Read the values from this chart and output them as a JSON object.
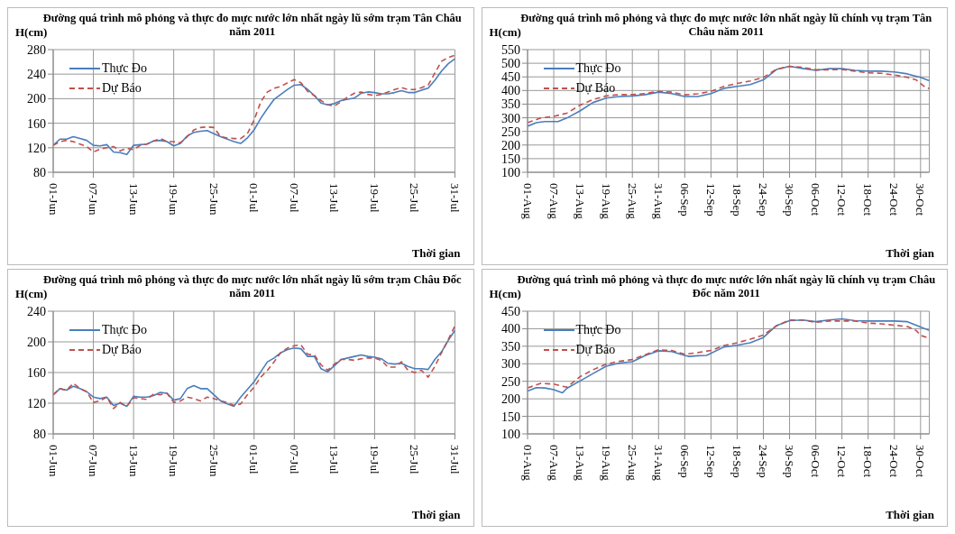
{
  "chart_data": [
    {
      "type": "line",
      "title": "Đường quá trình mô phỏng và thực đo mực nước lớn nhất ngày lũ sớm trạm Tân Châu năm 2011",
      "ylabel": "H(cm)",
      "xlabel": "Thời gian",
      "legend": "top left",
      "grid": true,
      "marker": "none",
      "x": [
        "2011-06-01",
        "2011-06-02",
        "2011-06-03",
        "2011-06-04",
        "2011-06-05",
        "2011-06-06",
        "2011-06-07",
        "2011-06-08",
        "2011-06-09",
        "2011-06-10",
        "2011-06-11",
        "2011-06-12",
        "2011-06-13",
        "2011-06-14",
        "2011-06-15",
        "2011-06-16",
        "2011-06-17",
        "2011-06-18",
        "2011-06-19",
        "2011-06-20",
        "2011-06-21",
        "2011-06-22",
        "2011-06-23",
        "2011-06-24",
        "2011-06-25",
        "2011-06-26",
        "2011-06-27",
        "2011-06-28",
        "2011-06-29",
        "2011-06-30",
        "2011-07-01",
        "2011-07-02",
        "2011-07-03",
        "2011-07-04",
        "2011-07-05",
        "2011-07-06",
        "2011-07-07",
        "2011-07-08",
        "2011-07-09",
        "2011-07-10",
        "2011-07-11",
        "2011-07-12",
        "2011-07-13",
        "2011-07-14",
        "2011-07-15",
        "2011-07-16",
        "2011-07-17",
        "2011-07-18",
        "2011-07-19",
        "2011-07-20",
        "2011-07-21",
        "2011-07-22",
        "2011-07-23",
        "2011-07-24",
        "2011-07-25",
        "2011-07-26",
        "2011-07-27",
        "2011-07-28",
        "2011-07-29",
        "2011-07-30",
        "2011-07-31"
      ],
      "xlim": [
        "2011-06-01",
        "2011-07-31"
      ],
      "xticks": [
        {
          "value": "2011-06-01",
          "label": "01-Jun"
        },
        {
          "value": "2011-06-07",
          "label": "07-Jun"
        },
        {
          "value": "2011-06-13",
          "label": "13-Jun"
        },
        {
          "value": "2011-06-19",
          "label": "19-Jun"
        },
        {
          "value": "2011-06-25",
          "label": "25-Jun"
        },
        {
          "value": "2011-07-01",
          "label": "01-Jul"
        },
        {
          "value": "2011-07-07",
          "label": "07-Jul"
        },
        {
          "value": "2011-07-13",
          "label": "13-Jul"
        },
        {
          "value": "2011-07-19",
          "label": "19-Jul"
        },
        {
          "value": "2011-07-25",
          "label": "25-Jul"
        },
        {
          "value": "2011-07-31",
          "label": "31-Jul"
        }
      ],
      "ylim": [
        80,
        280
      ],
      "yticks": [
        80,
        120,
        160,
        200,
        240,
        280
      ],
      "series": [
        {
          "name": "Thực Đo",
          "color": "#4a7ebb",
          "line_style": "solid",
          "values": [
            124,
            134,
            134,
            138,
            135,
            132,
            124,
            123,
            125,
            113,
            112,
            109,
            124,
            125,
            126,
            131,
            132,
            130,
            123,
            127,
            139,
            145,
            147,
            148,
            143,
            138,
            134,
            130,
            127,
            136,
            149,
            168,
            184,
            199,
            207,
            215,
            222,
            223,
            215,
            205,
            193,
            190,
            192,
            197,
            199,
            201,
            209,
            211,
            210,
            208,
            208,
            210,
            213,
            210,
            210,
            214,
            217,
            230,
            245,
            257,
            265
          ]
        },
        {
          "name": "Dự Báo",
          "color": "#c0504d",
          "line_style": "dashed",
          "values": [
            124,
            130,
            132,
            130,
            126,
            122,
            113,
            118,
            120,
            122,
            115,
            119,
            117,
            124,
            126,
            131,
            135,
            130,
            130,
            128,
            138,
            149,
            153,
            154,
            153,
            138,
            136,
            135,
            135,
            143,
            165,
            195,
            211,
            217,
            220,
            226,
            231,
            226,
            212,
            205,
            197,
            190,
            188,
            195,
            203,
            209,
            211,
            207,
            205,
            207,
            211,
            215,
            218,
            215,
            215,
            218,
            222,
            242,
            261,
            267,
            271
          ]
        }
      ]
    },
    {
      "type": "line",
      "title": "Đường quá trình mô phỏng và thực đo mực nước lớn nhất ngày lũ chính vụ trạm Tân Châu năm 2011",
      "ylabel": "H(cm)",
      "xlabel": "Thời gian",
      "legend": "top left",
      "grid": true,
      "marker": "none",
      "xlim": [
        "2011-08-01",
        "2011-11-01"
      ],
      "xticks": [
        {
          "value": "2011-08-01",
          "label": "01-Aug"
        },
        {
          "value": "2011-08-07",
          "label": "07-Aug"
        },
        {
          "value": "2011-08-13",
          "label": "13-Aug"
        },
        {
          "value": "2011-08-19",
          "label": "19-Aug"
        },
        {
          "value": "2011-08-25",
          "label": "25-Aug"
        },
        {
          "value": "2011-08-31",
          "label": "31-Aug"
        },
        {
          "value": "2011-09-06",
          "label": "06-Sep"
        },
        {
          "value": "2011-09-12",
          "label": "12-Sep"
        },
        {
          "value": "2011-09-18",
          "label": "18-Sep"
        },
        {
          "value": "2011-09-24",
          "label": "24-Sep"
        },
        {
          "value": "2011-09-30",
          "label": "30-Sep"
        },
        {
          "value": "2011-10-06",
          "label": "06-Oct"
        },
        {
          "value": "2011-10-12",
          "label": "12-Oct"
        },
        {
          "value": "2011-10-18",
          "label": "18-Oct"
        },
        {
          "value": "2011-10-24",
          "label": "24-Oct"
        },
        {
          "value": "2011-10-30",
          "label": "30-Oct"
        }
      ],
      "ylim": [
        100,
        550
      ],
      "yticks": [
        100,
        150,
        200,
        250,
        300,
        350,
        400,
        450,
        500,
        550
      ],
      "series": [
        {
          "name": "Thực Đo",
          "color": "#4a7ebb",
          "line_style": "solid",
          "x": [
            "2011-08-01",
            "2011-08-03",
            "2011-08-05",
            "2011-08-08",
            "2011-08-10",
            "2011-08-13",
            "2011-08-16",
            "2011-08-19",
            "2011-08-22",
            "2011-08-25",
            "2011-08-28",
            "2011-08-31",
            "2011-09-03",
            "2011-09-06",
            "2011-09-09",
            "2011-09-12",
            "2011-09-15",
            "2011-09-18",
            "2011-09-21",
            "2011-09-24",
            "2011-09-27",
            "2011-09-30",
            "2011-10-03",
            "2011-10-06",
            "2011-10-09",
            "2011-10-12",
            "2011-10-15",
            "2011-10-18",
            "2011-10-21",
            "2011-10-24",
            "2011-10-27",
            "2011-10-30",
            "2011-11-01"
          ],
          "values": [
            269,
            282,
            286,
            286,
            299,
            325,
            356,
            372,
            378,
            380,
            385,
            394,
            389,
            378,
            378,
            389,
            408,
            415,
            422,
            439,
            477,
            489,
            481,
            474,
            480,
            480,
            474,
            471,
            471,
            468,
            461,
            448,
            436
          ]
        },
        {
          "name": "Dự Báo",
          "color": "#c0504d",
          "line_style": "dashed",
          "x": [
            "2011-08-01",
            "2011-08-04",
            "2011-08-07",
            "2011-08-10",
            "2011-08-13",
            "2011-08-16",
            "2011-08-19",
            "2011-08-22",
            "2011-08-25",
            "2011-08-28",
            "2011-08-31",
            "2011-09-03",
            "2011-09-06",
            "2011-09-09",
            "2011-09-12",
            "2011-09-15",
            "2011-09-18",
            "2011-09-21",
            "2011-09-24",
            "2011-09-27",
            "2011-09-30",
            "2011-10-03",
            "2011-10-06",
            "2011-10-09",
            "2011-10-12",
            "2011-10-15",
            "2011-10-18",
            "2011-10-21",
            "2011-10-24",
            "2011-10-27",
            "2011-10-29",
            "2011-10-31",
            "2011-11-01"
          ],
          "values": [
            282,
            299,
            305,
            317,
            346,
            367,
            380,
            385,
            385,
            389,
            397,
            394,
            384,
            388,
            397,
            415,
            426,
            435,
            448,
            478,
            489,
            485,
            476,
            476,
            477,
            471,
            465,
            463,
            457,
            448,
            439,
            413,
            407
          ]
        }
      ]
    },
    {
      "type": "line",
      "title": "Đường quá trình mô phỏng và thực đo mực nước lớn nhất ngày lũ sớm trạm Châu Đốc năm 2011",
      "ylabel": "H(cm)",
      "xlabel": "Thời gian",
      "legend": "top left",
      "grid": true,
      "marker": "none",
      "x": [
        "2011-06-01",
        "2011-06-02",
        "2011-06-03",
        "2011-06-04",
        "2011-06-05",
        "2011-06-06",
        "2011-06-07",
        "2011-06-08",
        "2011-06-09",
        "2011-06-10",
        "2011-06-11",
        "2011-06-12",
        "2011-06-13",
        "2011-06-14",
        "2011-06-15",
        "2011-06-16",
        "2011-06-17",
        "2011-06-18",
        "2011-06-19",
        "2011-06-20",
        "2011-06-21",
        "2011-06-22",
        "2011-06-23",
        "2011-06-24",
        "2011-06-25",
        "2011-06-26",
        "2011-06-27",
        "2011-06-28",
        "2011-06-29",
        "2011-06-30",
        "2011-07-01",
        "2011-07-02",
        "2011-07-03",
        "2011-07-04",
        "2011-07-05",
        "2011-07-06",
        "2011-07-07",
        "2011-07-08",
        "2011-07-09",
        "2011-07-10",
        "2011-07-11",
        "2011-07-12",
        "2011-07-13",
        "2011-07-14",
        "2011-07-15",
        "2011-07-16",
        "2011-07-17",
        "2011-07-18",
        "2011-07-19",
        "2011-07-20",
        "2011-07-21",
        "2011-07-22",
        "2011-07-23",
        "2011-07-24",
        "2011-07-25",
        "2011-07-26",
        "2011-07-27",
        "2011-07-28",
        "2011-07-29",
        "2011-07-30",
        "2011-07-31"
      ],
      "xlim": [
        "2011-06-01",
        "2011-07-31"
      ],
      "xticks": [
        {
          "value": "2011-06-01",
          "label": "01-Jun"
        },
        {
          "value": "2011-06-07",
          "label": "07-Jun"
        },
        {
          "value": "2011-06-13",
          "label": "13-Jun"
        },
        {
          "value": "2011-06-19",
          "label": "19-Jun"
        },
        {
          "value": "2011-06-25",
          "label": "25-Jun"
        },
        {
          "value": "2011-07-01",
          "label": "01-Jul"
        },
        {
          "value": "2011-07-07",
          "label": "07-Jul"
        },
        {
          "value": "2011-07-13",
          "label": "13-Jul"
        },
        {
          "value": "2011-07-19",
          "label": "19-Jul"
        },
        {
          "value": "2011-07-25",
          "label": "25-Jul"
        },
        {
          "value": "2011-07-31",
          "label": "31-Jul"
        }
      ],
      "ylim": [
        80,
        240
      ],
      "yticks": [
        80,
        120,
        160,
        200,
        240
      ],
      "series": [
        {
          "name": "Thực Đo",
          "color": "#4a7ebb",
          "line_style": "solid",
          "values": [
            131,
            139,
            137,
            142,
            139,
            135,
            128,
            126,
            128,
            117,
            120,
            116,
            129,
            128,
            128,
            130,
            134,
            133,
            124,
            126,
            139,
            143,
            139,
            139,
            131,
            123,
            119,
            116,
            128,
            138,
            148,
            161,
            174,
            179,
            186,
            190,
            192,
            191,
            181,
            181,
            165,
            161,
            169,
            177,
            179,
            181,
            183,
            181,
            180,
            178,
            172,
            171,
            172,
            168,
            165,
            165,
            164,
            177,
            187,
            202,
            215
          ]
        },
        {
          "name": "Dự Báo",
          "color": "#c0504d",
          "line_style": "dashed",
          "values": [
            131,
            139,
            137,
            146,
            139,
            135,
            121,
            123,
            128,
            113,
            121,
            116,
            127,
            126,
            125,
            132,
            131,
            133,
            121,
            123,
            128,
            126,
            123,
            128,
            126,
            123,
            121,
            117,
            119,
            131,
            141,
            154,
            163,
            174,
            186,
            192,
            195,
            196,
            184,
            183,
            170,
            163,
            171,
            177,
            177,
            176,
            178,
            179,
            179,
            176,
            167,
            167,
            174,
            163,
            160,
            163,
            154,
            168,
            186,
            203,
            221
          ]
        }
      ]
    },
    {
      "type": "line",
      "title": "Đường quá trình mô phỏng và thực đo mực nước lớn nhất ngày lũ chính vụ trạm Châu Đốc năm 2011",
      "ylabel": "H(cm)",
      "xlabel": "Thời gian",
      "legend": "top left",
      "grid": true,
      "marker": "none",
      "xlim": [
        "2011-08-01",
        "2011-11-01"
      ],
      "xticks": [
        {
          "value": "2011-08-01",
          "label": "01-Aug"
        },
        {
          "value": "2011-08-07",
          "label": "07-Aug"
        },
        {
          "value": "2011-08-13",
          "label": "13-Aug"
        },
        {
          "value": "2011-08-19",
          "label": "19-Aug"
        },
        {
          "value": "2011-08-25",
          "label": "25-Aug"
        },
        {
          "value": "2011-08-31",
          "label": "31-Aug"
        },
        {
          "value": "2011-09-06",
          "label": "06-Sep"
        },
        {
          "value": "2011-09-12",
          "label": "12-Sep"
        },
        {
          "value": "2011-09-18",
          "label": "18-Sep"
        },
        {
          "value": "2011-09-24",
          "label": "24-Sep"
        },
        {
          "value": "2011-09-30",
          "label": "30-Sep"
        },
        {
          "value": "2011-10-06",
          "label": "06-Oct"
        },
        {
          "value": "2011-10-12",
          "label": "12-Oct"
        },
        {
          "value": "2011-10-18",
          "label": "18-Oct"
        },
        {
          "value": "2011-10-24",
          "label": "24-Oct"
        },
        {
          "value": "2011-10-30",
          "label": "30-Oct"
        }
      ],
      "ylim": [
        100,
        450
      ],
      "yticks": [
        100,
        150,
        200,
        250,
        300,
        350,
        400,
        450
      ],
      "series": [
        {
          "name": "Thực Đo",
          "color": "#4a7ebb",
          "line_style": "solid",
          "x": [
            "2011-08-01",
            "2011-08-03",
            "2011-08-05",
            "2011-08-07",
            "2011-08-09",
            "2011-08-10",
            "2011-08-13",
            "2011-08-16",
            "2011-08-19",
            "2011-08-22",
            "2011-08-25",
            "2011-08-28",
            "2011-08-31",
            "2011-09-03",
            "2011-09-06",
            "2011-09-07",
            "2011-09-09",
            "2011-09-11",
            "2011-09-15",
            "2011-09-18",
            "2011-09-21",
            "2011-09-24",
            "2011-09-27",
            "2011-09-30",
            "2011-10-03",
            "2011-10-06",
            "2011-10-09",
            "2011-10-12",
            "2011-10-15",
            "2011-10-18",
            "2011-10-21",
            "2011-10-24",
            "2011-10-27",
            "2011-10-30",
            "2011-11-01"
          ],
          "values": [
            222,
            232,
            231,
            226,
            217,
            230,
            251,
            272,
            293,
            302,
            306,
            324,
            337,
            335,
            324,
            321,
            323,
            324,
            348,
            353,
            360,
            375,
            409,
            423,
            425,
            420,
            425,
            428,
            423,
            422,
            422,
            422,
            420,
            405,
            395
          ]
        },
        {
          "name": "Dự Báo",
          "color": "#c0504d",
          "line_style": "dashed",
          "x": [
            "2011-08-01",
            "2011-08-04",
            "2011-08-07",
            "2011-08-10",
            "2011-08-13",
            "2011-08-16",
            "2011-08-19",
            "2011-08-22",
            "2011-08-25",
            "2011-08-28",
            "2011-08-31",
            "2011-09-03",
            "2011-09-06",
            "2011-09-09",
            "2011-09-12",
            "2011-09-15",
            "2011-09-18",
            "2011-09-21",
            "2011-09-24",
            "2011-09-27",
            "2011-09-30",
            "2011-10-03",
            "2011-10-06",
            "2011-10-09",
            "2011-10-12",
            "2011-10-15",
            "2011-10-18",
            "2011-10-21",
            "2011-10-24",
            "2011-10-27",
            "2011-10-29",
            "2011-10-30",
            "2011-11-01"
          ],
          "values": [
            231,
            244,
            242,
            233,
            263,
            283,
            299,
            307,
            312,
            326,
            340,
            338,
            327,
            332,
            338,
            352,
            360,
            370,
            382,
            408,
            425,
            425,
            418,
            422,
            422,
            422,
            416,
            414,
            410,
            406,
            395,
            381,
            373
          ]
        }
      ]
    }
  ]
}
